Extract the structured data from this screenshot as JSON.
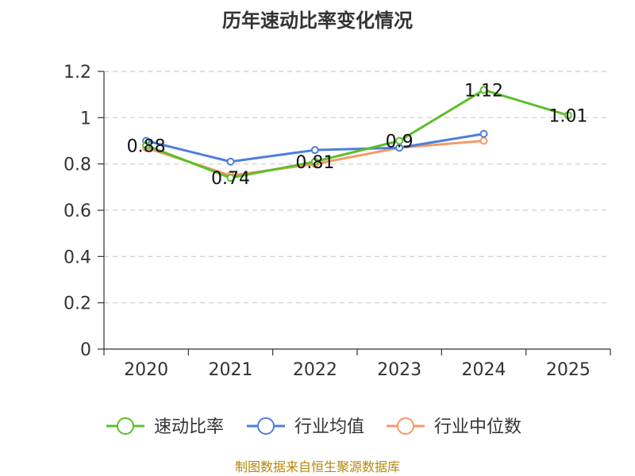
{
  "chart_data": {
    "type": "line",
    "title": "历年速动比率变化情况",
    "categories": [
      "2020",
      "2021",
      "2022",
      "2023",
      "2024",
      "2025"
    ],
    "ylim": [
      0,
      1.2
    ],
    "yticks": [
      "0",
      "0.2",
      "0.4",
      "0.6",
      "0.8",
      "1",
      "1.2"
    ],
    "grid": true,
    "legend_position": "bottom",
    "series": [
      {
        "name": "速动比率",
        "color": "#5cbf2a",
        "values": [
          0.88,
          0.74,
          0.81,
          0.9,
          1.12,
          1.01
        ],
        "labels": [
          "0.88",
          "0.74",
          "0.81",
          "0.9",
          "1.12",
          "1.01"
        ],
        "show_labels": true
      },
      {
        "name": "行业均值",
        "color": "#4f7fd9",
        "values": [
          0.9,
          0.81,
          0.86,
          0.87,
          0.93,
          null
        ],
        "show_labels": false
      },
      {
        "name": "行业中位数",
        "color": "#f59a6a",
        "values": [
          0.87,
          0.75,
          0.8,
          0.87,
          0.9,
          null
        ],
        "show_labels": false
      }
    ]
  },
  "source_text": "制图数据来自恒生聚源数据库"
}
